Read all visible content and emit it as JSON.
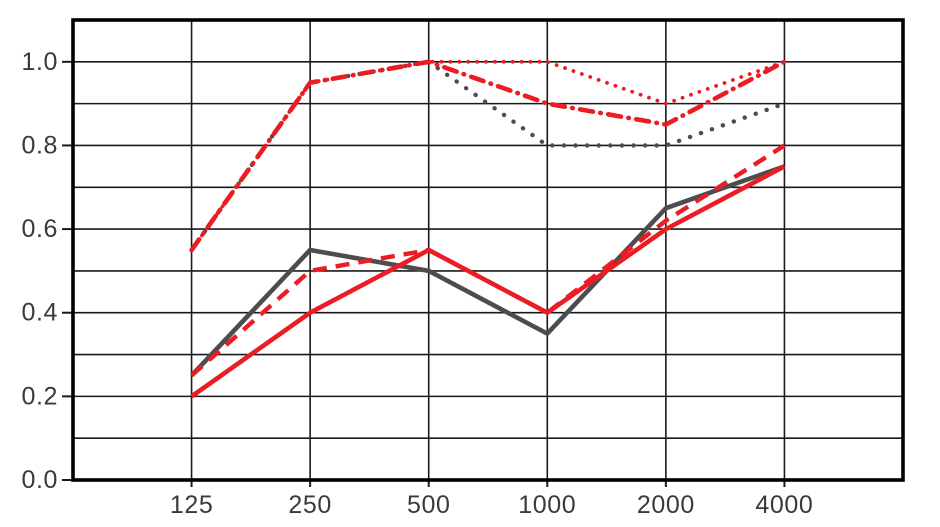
{
  "chart": {
    "background": "#ffffff",
    "grid_color": "#1a1a1a",
    "border_color": "#000000",
    "tick_color": "#1a1a1a",
    "label_color": "#3a3a3a",
    "x_tick_labels": [
      "125",
      "250",
      "500",
      "1000",
      "2000",
      "4000"
    ],
    "y_tick_labels": [
      "0.0",
      "0.2",
      "0.4",
      "0.6",
      "0.8",
      "1.0"
    ]
  },
  "chart_data": {
    "type": "line",
    "title": "",
    "subtitle": "",
    "xlabel": "",
    "ylabel": "",
    "x": [
      125,
      250,
      500,
      1000,
      2000,
      4000
    ],
    "x_scale": "octave-bands",
    "ylim": [
      0,
      1.1
    ],
    "y_grid_step": 0.1,
    "y_label_step": 0.2,
    "grid": true,
    "legend": false,
    "colors": {
      "red": "#ec1c24",
      "gray": "#4d4d4d"
    },
    "series": [
      {
        "name": "gray-dotted",
        "color": "#4d4d4d",
        "style": "dotted",
        "values": [
          0.55,
          0.95,
          1.0,
          0.8,
          0.8,
          0.9
        ]
      },
      {
        "name": "red-dotted",
        "color": "#ec1c24",
        "style": "fine-dotted",
        "values": [
          0.55,
          0.95,
          1.0,
          1.0,
          0.9,
          1.0
        ]
      },
      {
        "name": "red-dash-dot",
        "color": "#ec1c24",
        "style": "dash-dot",
        "values": [
          0.55,
          0.95,
          1.0,
          0.9,
          0.85,
          1.0
        ]
      },
      {
        "name": "gray-solid",
        "color": "#4d4d4d",
        "style": "solid",
        "values": [
          0.25,
          0.55,
          0.5,
          0.35,
          0.65,
          0.75
        ]
      },
      {
        "name": "red-dashed",
        "color": "#ec1c24",
        "style": "dashed",
        "values": [
          0.25,
          0.5,
          0.55,
          0.4,
          0.62,
          0.8
        ]
      },
      {
        "name": "red-solid",
        "color": "#ec1c24",
        "style": "solid",
        "values": [
          0.2,
          0.4,
          0.55,
          0.4,
          0.6,
          0.75
        ]
      }
    ]
  }
}
